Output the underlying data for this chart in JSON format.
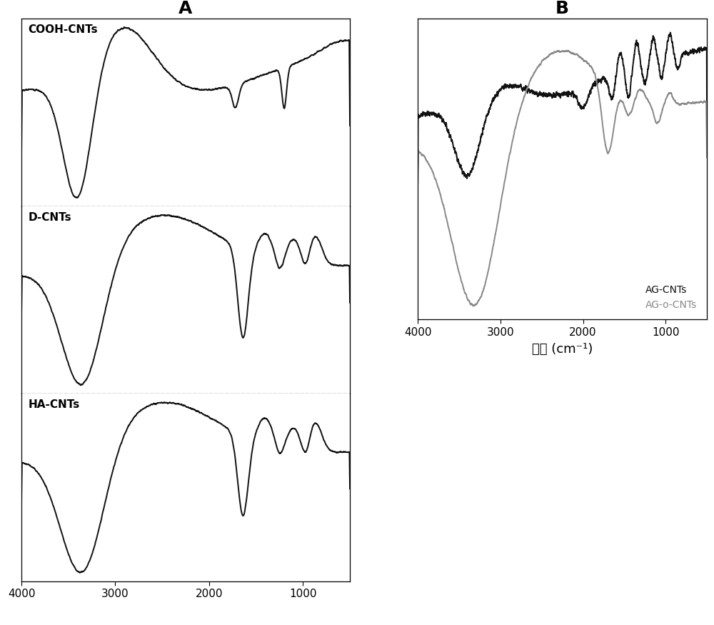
{
  "title_A": "A",
  "title_B": "B",
  "xlabel": "波数 (cm⁻¹)",
  "xmin": 4000,
  "xmax": 500,
  "labels_A": [
    "COOH-CNTs",
    "D-CNTs",
    "HA-CNTs"
  ],
  "labels_B": [
    "AG-CNTs",
    "AG-o-CNTs"
  ],
  "line_color_black": "#111111",
  "line_color_gray": "#888888",
  "bg_color": "#ffffff"
}
